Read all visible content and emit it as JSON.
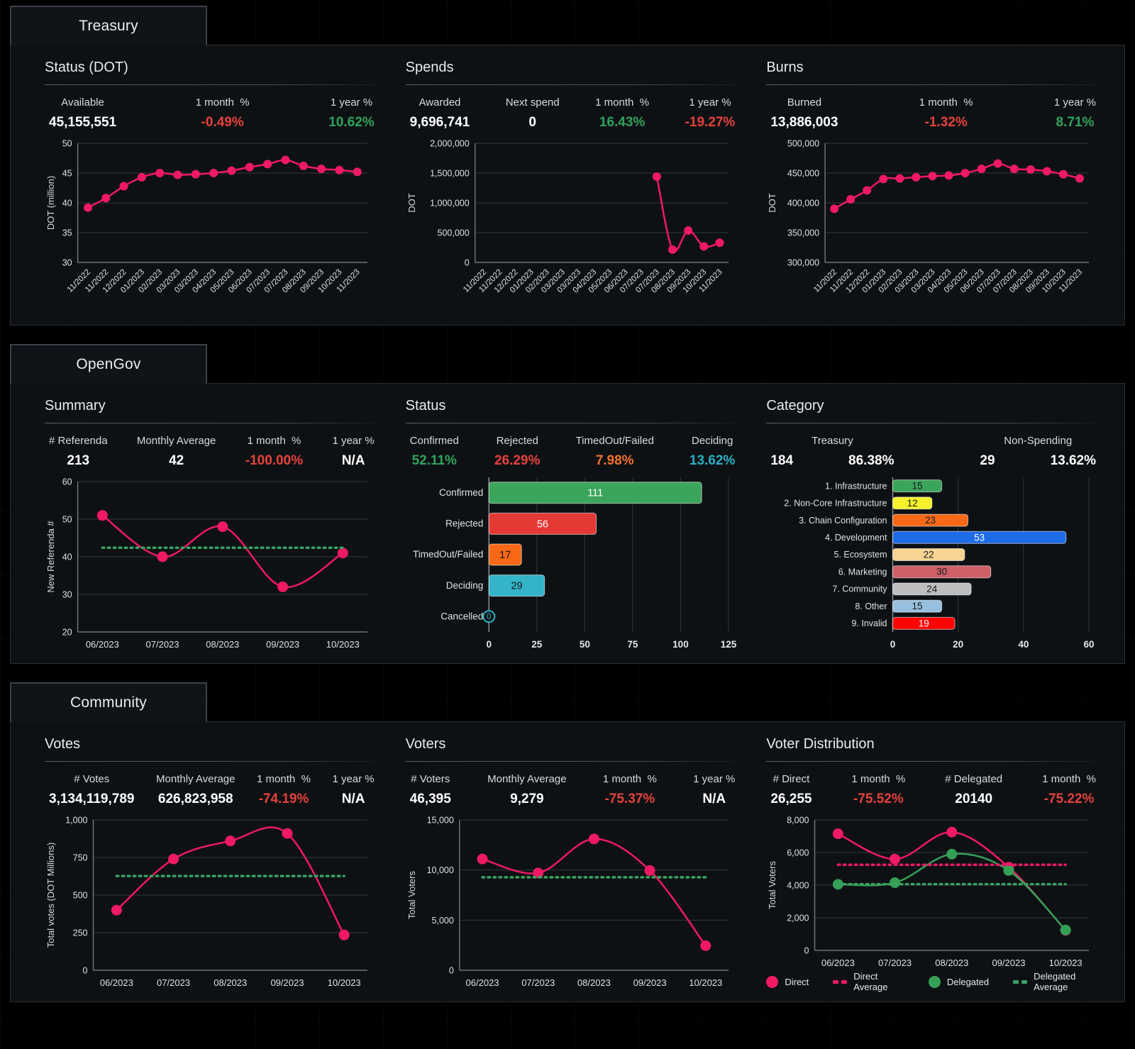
{
  "colors": {
    "pink": "#EF1A63",
    "green_positive": "#2EA35B",
    "red_negative": "#E5423C",
    "orange": "#F2702D",
    "teal": "#2AB0C5",
    "average_green": "#3AA263",
    "delegated_green": "#34A056"
  },
  "sections": [
    {
      "id": "treasury",
      "tab": "Treasury",
      "panels": [
        {
          "id": "status-dot",
          "title": "Status (DOT)",
          "metrics": [
            {
              "label": "Available",
              "values": [
                {
                  "text": "45,155,551",
                  "color": "white"
                }
              ]
            },
            {
              "label": "1 month  %",
              "values": [
                {
                  "text": "-0.49%",
                  "color": "red"
                }
              ]
            },
            {
              "label": "1 year %",
              "values": [
                {
                  "text": "10.62%",
                  "color": "green"
                }
              ]
            }
          ],
          "chart": 0
        },
        {
          "id": "spends",
          "title": "Spends",
          "metrics": [
            {
              "label": "Awarded",
              "values": [
                {
                  "text": "9,696,741",
                  "color": "white"
                }
              ]
            },
            {
              "label": "Next spend",
              "values": [
                {
                  "text": "0",
                  "color": "white"
                }
              ]
            },
            {
              "label": "1 month  %",
              "values": [
                {
                  "text": "16.43%",
                  "color": "green"
                }
              ]
            },
            {
              "label": "1 year %",
              "values": [
                {
                  "text": "-19.27%",
                  "color": "red"
                }
              ]
            }
          ],
          "chart": 1
        },
        {
          "id": "burns",
          "title": "Burns",
          "metrics": [
            {
              "label": "Burned",
              "values": [
                {
                  "text": "13,886,003",
                  "color": "white"
                }
              ]
            },
            {
              "label": "1 month  %",
              "values": [
                {
                  "text": "-1.32%",
                  "color": "red"
                }
              ]
            },
            {
              "label": "1 year %",
              "values": [
                {
                  "text": "8.71%",
                  "color": "green"
                }
              ]
            }
          ],
          "chart": 2
        }
      ]
    },
    {
      "id": "opengov",
      "tab": "OpenGov",
      "panels": [
        {
          "id": "summary",
          "title": "Summary",
          "metrics": [
            {
              "label": "# Referenda",
              "values": [
                {
                  "text": "213",
                  "color": "white"
                }
              ]
            },
            {
              "label": "Monthly Average",
              "values": [
                {
                  "text": "42",
                  "color": "white"
                }
              ]
            },
            {
              "label": "1 month  %",
              "values": [
                {
                  "text": "-100.00%",
                  "color": "red"
                }
              ]
            },
            {
              "label": "1 year %",
              "values": [
                {
                  "text": "N/A",
                  "color": "white"
                }
              ]
            }
          ],
          "chart": 3
        },
        {
          "id": "status",
          "title": "Status",
          "metrics": [
            {
              "label": "Confirmed",
              "values": [
                {
                  "text": "52.11%",
                  "color": "green"
                }
              ]
            },
            {
              "label": "Rejected",
              "values": [
                {
                  "text": "26.29%",
                  "color": "red"
                }
              ]
            },
            {
              "label": "TimedOut/Failed",
              "values": [
                {
                  "text": "7.98%",
                  "color": "orange"
                }
              ]
            },
            {
              "label": "Deciding",
              "values": [
                {
                  "text": "13.62%",
                  "color": "teal"
                }
              ]
            }
          ],
          "chart": 4
        },
        {
          "id": "category",
          "title": "Category",
          "metrics": [
            {
              "label": "Treasury",
              "values": [
                {
                  "text": "184",
                  "color": "white"
                },
                {
                  "text": "86.38%",
                  "color": "white"
                }
              ]
            },
            {
              "label": "Non-Spending",
              "values": [
                {
                  "text": "29",
                  "color": "white"
                },
                {
                  "text": "13.62%",
                  "color": "white"
                }
              ]
            }
          ],
          "chart": 5
        }
      ]
    },
    {
      "id": "community",
      "tab": "Community",
      "panels": [
        {
          "id": "votes",
          "title": "Votes",
          "metrics": [
            {
              "label": "# Votes",
              "values": [
                {
                  "text": "3,134,119,789",
                  "color": "white"
                }
              ]
            },
            {
              "label": "Monthly Average",
              "values": [
                {
                  "text": "626,823,958",
                  "color": "white"
                }
              ]
            },
            {
              "label": "1 month  %",
              "values": [
                {
                  "text": "-74.19%",
                  "color": "red"
                }
              ]
            },
            {
              "label": "1 year %",
              "values": [
                {
                  "text": "N/A",
                  "color": "white"
                }
              ]
            }
          ],
          "chart": 6
        },
        {
          "id": "voters",
          "title": "Voters",
          "metrics": [
            {
              "label": "# Voters",
              "values": [
                {
                  "text": "46,395",
                  "color": "white"
                }
              ]
            },
            {
              "label": "Monthly Average",
              "values": [
                {
                  "text": "9,279",
                  "color": "white"
                }
              ]
            },
            {
              "label": "1 month  %",
              "values": [
                {
                  "text": "-75.37%",
                  "color": "red"
                }
              ]
            },
            {
              "label": "1 year %",
              "values": [
                {
                  "text": "N/A",
                  "color": "white"
                }
              ]
            }
          ],
          "chart": 7
        },
        {
          "id": "voter-distribution",
          "title": "Voter Distribution",
          "metrics": [
            {
              "label": "# Direct",
              "values": [
                {
                  "text": "26,255",
                  "color": "white"
                }
              ]
            },
            {
              "label": "1 month  %",
              "values": [
                {
                  "text": "-75.52%",
                  "color": "red"
                }
              ]
            },
            {
              "label": "# Delegated",
              "values": [
                {
                  "text": "20140",
                  "color": "white"
                }
              ]
            },
            {
              "label": "1 month  %",
              "values": [
                {
                  "text": "-75.22%",
                  "color": "red"
                }
              ]
            }
          ],
          "chart": 8
        }
      ]
    }
  ],
  "chart_data": [
    {
      "id": "treasury-status",
      "type": "line",
      "title": "Status (DOT)",
      "ylabel": "DOT (million)",
      "ylim": [
        30,
        50
      ],
      "yticks": [
        30,
        35,
        40,
        45,
        50
      ],
      "rotate_x": true,
      "x": [
        "11/2022",
        "11/2022",
        "12/2022",
        "01/2023",
        "02/2023",
        "03/2023",
        "03/2023",
        "04/2023",
        "05/2023",
        "06/2023",
        "07/2023",
        "07/2023",
        "08/2023",
        "09/2023",
        "10/2023",
        "11/2023"
      ],
      "series": [
        {
          "name": "Available",
          "color": "#EF1A63",
          "values": [
            39.2,
            40.8,
            42.8,
            44.3,
            45.0,
            44.7,
            44.8,
            45.0,
            45.4,
            46.0,
            46.5,
            47.2,
            46.2,
            45.7,
            45.5,
            45.2
          ]
        }
      ]
    },
    {
      "id": "treasury-spends",
      "type": "line",
      "title": "Spends",
      "ylabel": "DOT",
      "ylim": [
        0,
        2000000
      ],
      "yticks": [
        0,
        500000,
        1000000,
        1500000,
        2000000
      ],
      "rotate_x": true,
      "x": [
        "11/2022",
        "11/2022",
        "12/2022",
        "01/2023",
        "02/2023",
        "03/2023",
        "03/2023",
        "04/2023",
        "05/2023",
        "06/2023",
        "07/2023",
        "07/2023",
        "08/2023",
        "09/2023",
        "10/2023",
        "11/2023"
      ],
      "series": [
        {
          "name": "Awarded",
          "color": "#EF1A63",
          "values": [
            null,
            null,
            null,
            null,
            null,
            null,
            null,
            null,
            null,
            null,
            null,
            1440000,
            215000,
            535000,
            270000,
            330000
          ]
        }
      ]
    },
    {
      "id": "treasury-burns",
      "type": "line",
      "title": "Burns",
      "ylabel": "DOT",
      "ylim": [
        300000,
        500000
      ],
      "yticks": [
        300000,
        350000,
        400000,
        450000,
        500000
      ],
      "rotate_x": true,
      "x": [
        "11/2022",
        "11/2022",
        "12/2022",
        "01/2023",
        "02/2023",
        "03/2023",
        "03/2023",
        "04/2023",
        "05/2023",
        "06/2023",
        "07/2023",
        "07/2023",
        "08/2023",
        "09/2023",
        "10/2023",
        "11/2023"
      ],
      "series": [
        {
          "name": "Burned",
          "color": "#EF1A63",
          "values": [
            390000,
            406000,
            421000,
            440000,
            441000,
            443000,
            445000,
            446000,
            450000,
            457000,
            466000,
            457000,
            456000,
            453000,
            448000,
            441000
          ]
        }
      ]
    },
    {
      "id": "opengov-summary",
      "type": "line",
      "title": "Summary",
      "ylabel": "New Referenda #",
      "ylim": [
        20,
        60
      ],
      "yticks": [
        20,
        30,
        40,
        50,
        60
      ],
      "x": [
        "06/2023",
        "07/2023",
        "08/2023",
        "09/2023",
        "10/2023"
      ],
      "series": [
        {
          "name": "New Referenda",
          "color": "#EF1A63",
          "values": [
            51,
            40,
            48,
            32,
            41
          ],
          "avg": 42.4,
          "avg_color": "#3AA263"
        }
      ]
    },
    {
      "id": "opengov-status",
      "type": "hbar",
      "title": "Status",
      "categories": [
        "Confirmed",
        "Rejected",
        "TimedOut/Failed",
        "Deciding",
        "Cancelled"
      ],
      "values": [
        111,
        56,
        17,
        29,
        0
      ],
      "colors": [
        "#3BA55C",
        "#E53935",
        "#F96816",
        "#35B4C8",
        "#35B4C8"
      ],
      "label_colors": [
        "#FFFFFF",
        "#FFFFFF",
        "#16191D",
        "#16191D",
        "#2AB0C5"
      ],
      "xlim": [
        0,
        125
      ],
      "xticks": [
        0,
        25,
        50,
        75,
        100,
        125
      ]
    },
    {
      "id": "opengov-category",
      "type": "hbar",
      "title": "Category",
      "categories": [
        "1. Infrastructure",
        "2. Non-Core Infrastructure",
        "3. Chain Configuration",
        "4. Development",
        "5. Ecosystem",
        "6. Marketing",
        "7. Community",
        "8. Other",
        "9. Invalid"
      ],
      "values": [
        15,
        12,
        23,
        53,
        22,
        30,
        24,
        15,
        19
      ],
      "colors": [
        "#3BA55C",
        "#F4F32B",
        "#F96816",
        "#1E6BE8",
        "#F7D492",
        "#CE5F66",
        "#BEBEBE",
        "#97C0DF",
        "#FE0505"
      ],
      "label_colors": [
        "#16191D",
        "#16191D",
        "#16191D",
        "#FFFFFF",
        "#16191D",
        "#16191D",
        "#16191D",
        "#16191D",
        "#FFFFFF"
      ],
      "xlim": [
        0,
        60
      ],
      "xticks": [
        0,
        20,
        40,
        60
      ]
    },
    {
      "id": "community-votes",
      "type": "line",
      "title": "Votes",
      "ylabel": "Total votes (DOT Millions)",
      "ylim": [
        0,
        1000
      ],
      "yticks": [
        0,
        250,
        500,
        750,
        1000
      ],
      "x": [
        "06/2023",
        "07/2023",
        "08/2023",
        "09/2023",
        "10/2023"
      ],
      "series": [
        {
          "name": "Votes",
          "color": "#EF1A63",
          "values": [
            400,
            740,
            860,
            910,
            235
          ],
          "avg": 627,
          "avg_color": "#3AA263"
        }
      ]
    },
    {
      "id": "community-voters",
      "type": "line",
      "title": "Voters",
      "ylabel": "Total Voters",
      "ylim": [
        0,
        15000
      ],
      "yticks": [
        0,
        5000,
        10000,
        15000
      ],
      "x": [
        "06/2023",
        "07/2023",
        "08/2023",
        "09/2023",
        "10/2023"
      ],
      "series": [
        {
          "name": "Voters",
          "color": "#EF1A63",
          "values": [
            11100,
            9700,
            13100,
            9950,
            2450
          ],
          "avg": 9279,
          "avg_color": "#3AA263"
        }
      ]
    },
    {
      "id": "community-voter-distribution",
      "type": "line",
      "title": "Voter Distribution",
      "ylabel": "Total Voters",
      "ylim": [
        0,
        8000
      ],
      "yticks": [
        0,
        2000,
        4000,
        6000,
        8000
      ],
      "x": [
        "06/2023",
        "07/2023",
        "08/2023",
        "09/2023",
        "10/2023"
      ],
      "series": [
        {
          "name": "Direct",
          "color": "#EF1A63",
          "values": [
            7150,
            5600,
            7250,
            5100,
            1230
          ],
          "avg": 5250,
          "avg_color": "#EF1A63"
        },
        {
          "name": "Delegated",
          "color": "#34A056",
          "values": [
            4050,
            4150,
            5900,
            4900,
            1250
          ],
          "avg": 4060,
          "avg_color": "#3AA263"
        }
      ],
      "legend": [
        {
          "label": "Direct",
          "type": "dot",
          "color": "#EF1A63"
        },
        {
          "label": "Direct Average",
          "type": "dash",
          "color": "#EF1A63"
        },
        {
          "label": "Delegated",
          "type": "dot",
          "color": "#34A056"
        },
        {
          "label": "Delegated Average",
          "type": "dash",
          "color": "#3AA263"
        }
      ]
    }
  ]
}
